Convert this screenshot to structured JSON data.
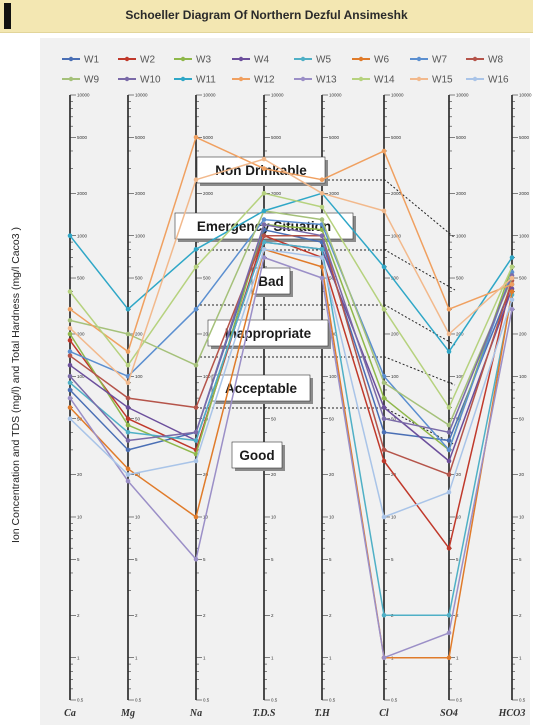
{
  "chart_data": {
    "type": "line",
    "title": "Schoeller Diagram Of  Northern Dezful Ansimeshk",
    "ylabel": "Ion Concentration  and TDS (mg/l) and Total Hardness (mg/l Caco3 )",
    "categories": [
      "Ca",
      "Mg",
      "Na",
      "T.D.S",
      "T.H",
      "Cl",
      "SO4",
      "HCO3"
    ],
    "scale": "log",
    "ylim": [
      0.5,
      10000
    ],
    "legend_position": "top",
    "zones": [
      "Non Drinkable",
      "Emergency Situation",
      "Bad",
      "Inappropriate",
      "Acceptable",
      "Good"
    ],
    "series": [
      {
        "name": "W1",
        "color": "#4a6fb5",
        "values": [
          80,
          30,
          40,
          1100,
          900,
          40,
          35,
          450
        ]
      },
      {
        "name": "W2",
        "color": "#c0392b",
        "values": [
          180,
          50,
          30,
          1000,
          700,
          25,
          6,
          500
        ]
      },
      {
        "name": "W3",
        "color": "#8fb84a",
        "values": [
          200,
          45,
          28,
          1200,
          1100,
          70,
          30,
          600
        ]
      },
      {
        "name": "W4",
        "color": "#6c4f9c",
        "values": [
          120,
          60,
          35,
          900,
          800,
          60,
          25,
          420
        ]
      },
      {
        "name": "W5",
        "color": "#4fb0c6",
        "values": [
          90,
          40,
          35,
          900,
          800,
          2,
          2,
          380
        ]
      },
      {
        "name": "W6",
        "color": "#e07b2a",
        "values": [
          60,
          22,
          10,
          800,
          600,
          1,
          1,
          400
        ]
      },
      {
        "name": "W7",
        "color": "#5b8fd0",
        "values": [
          150,
          100,
          300,
          1300,
          1200,
          100,
          30,
          550
        ]
      },
      {
        "name": "W8",
        "color": "#b5544a",
        "values": [
          140,
          70,
          60,
          1000,
          1000,
          30,
          20,
          480
        ]
      },
      {
        "name": "W9",
        "color": "#a5c17a",
        "values": [
          250,
          200,
          120,
          1500,
          1300,
          90,
          45,
          500
        ]
      },
      {
        "name": "W10",
        "color": "#7a6aa8",
        "values": [
          100,
          35,
          40,
          1200,
          1000,
          50,
          40,
          520
        ]
      },
      {
        "name": "W11",
        "color": "#2fa7c7",
        "values": [
          1000,
          300,
          800,
          1500,
          2000,
          600,
          150,
          700
        ]
      },
      {
        "name": "W12",
        "color": "#f0a060",
        "values": [
          300,
          150,
          5000,
          3000,
          2500,
          4000,
          300,
          450
        ]
      },
      {
        "name": "W13",
        "color": "#9b8fc7",
        "values": [
          70,
          18,
          5,
          700,
          500,
          1,
          1.5,
          300
        ]
      },
      {
        "name": "W14",
        "color": "#b6d27e",
        "values": [
          400,
          120,
          600,
          2000,
          1600,
          300,
          60,
          600
        ]
      },
      {
        "name": "W15",
        "color": "#f2b98c",
        "values": [
          220,
          90,
          2500,
          3500,
          2000,
          1500,
          200,
          500
        ]
      },
      {
        "name": "W16",
        "color": "#a9c4e8",
        "values": [
          50,
          20,
          25,
          800,
          700,
          10,
          15,
          350
        ]
      }
    ]
  }
}
